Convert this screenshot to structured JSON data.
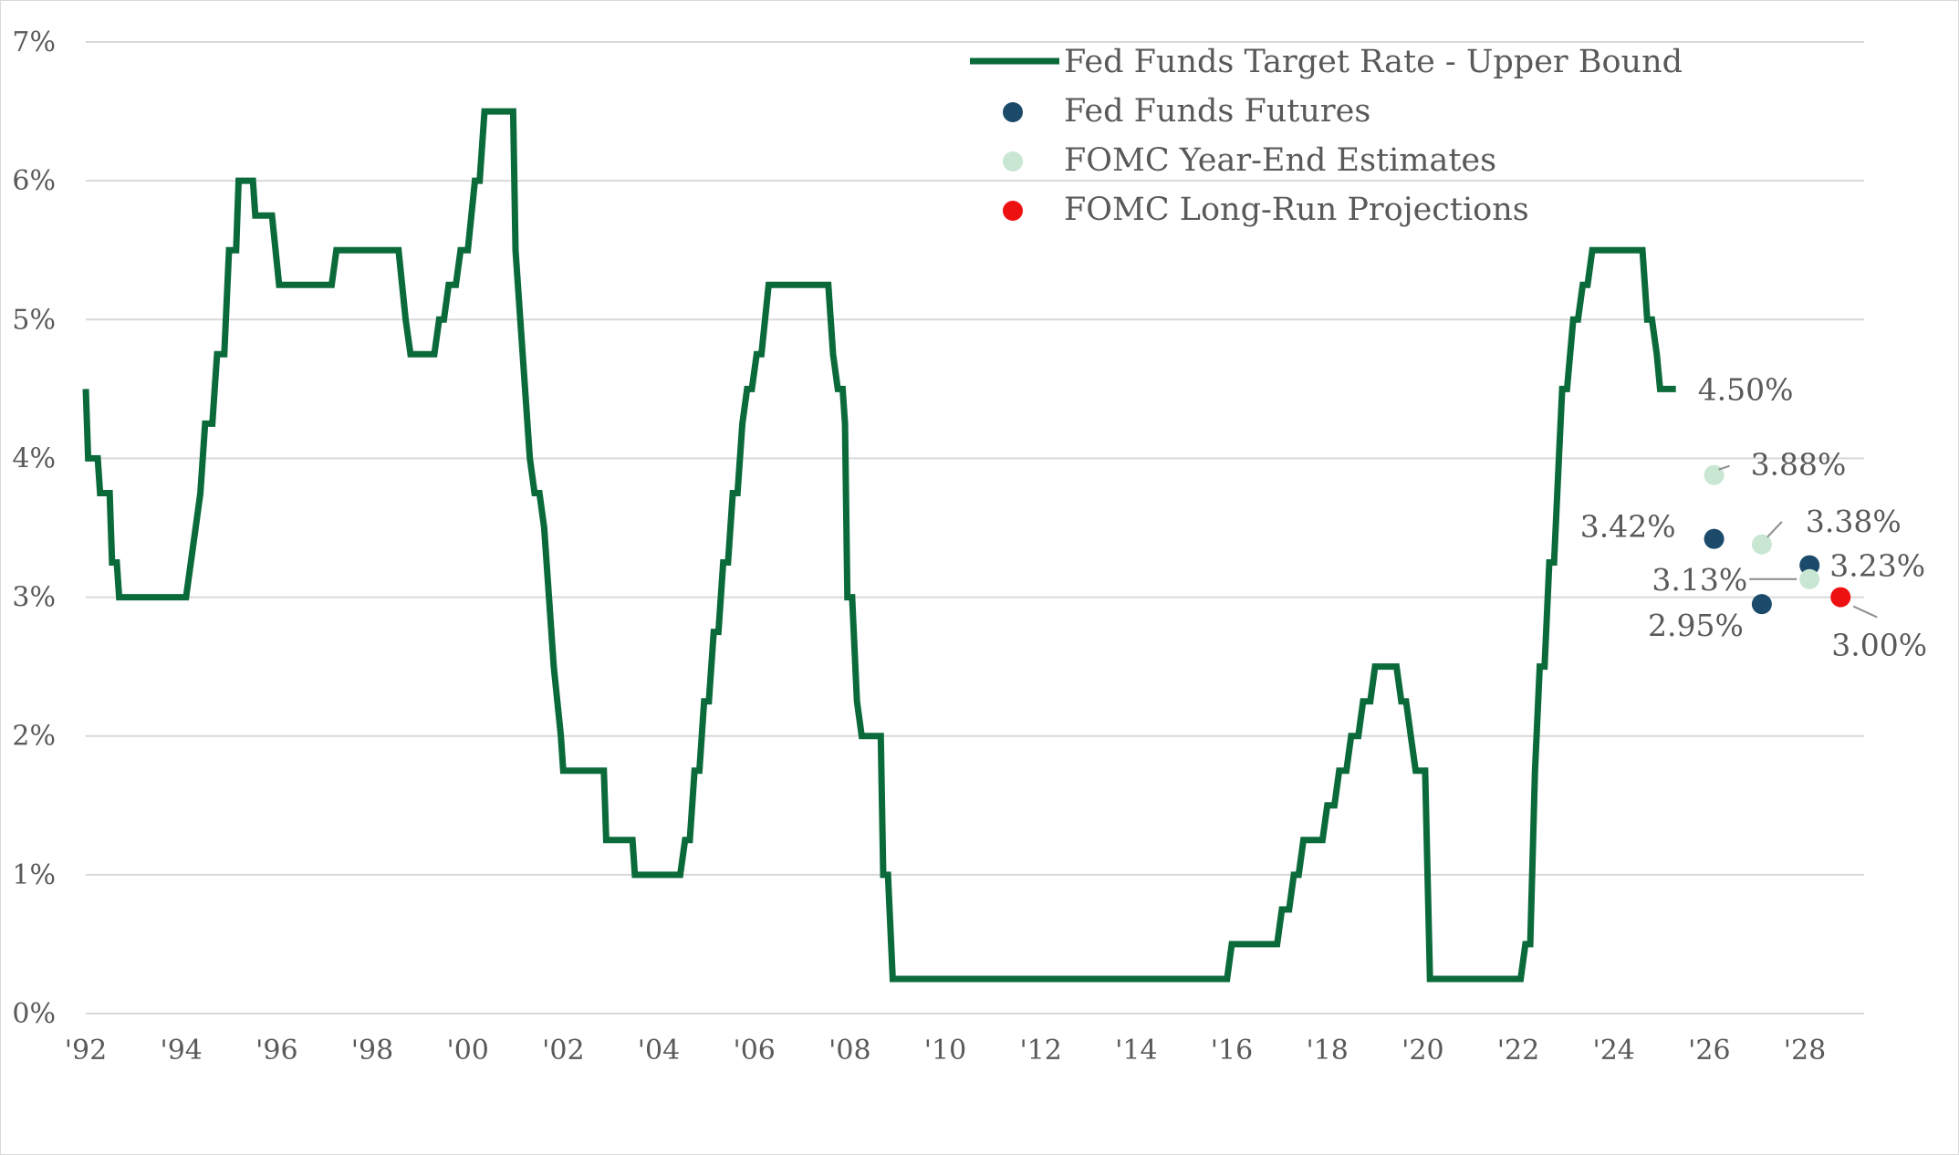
{
  "chart_data": {
    "type": "line",
    "title": "",
    "xlabel": "",
    "ylabel": "",
    "xlim": [
      1992,
      2029
    ],
    "ylim": [
      0,
      7
    ],
    "grid": true,
    "legend_position": "top-right",
    "x_ticks": [
      "'92",
      "'94",
      "'96",
      "'98",
      "'00",
      "'02",
      "'04",
      "'06",
      "'08",
      "'10",
      "'12",
      "'14",
      "'16",
      "'18",
      "'20",
      "'22",
      "'24",
      "'26",
      "'28"
    ],
    "y_ticks": [
      "0%",
      "1%",
      "2%",
      "3%",
      "4%",
      "5%",
      "6%",
      "7%"
    ],
    "colors": {
      "line": "#0b6a3a",
      "futures": "#1b4a6b",
      "year_end": "#c9e6d3",
      "long_run": "#ee1111",
      "grid": "#d9d9d9",
      "text": "#595959"
    },
    "series": [
      {
        "name": "Fed Funds Target Rate - Upper Bound",
        "kind": "step-line",
        "points": [
          [
            1992.0,
            4.5
          ],
          [
            1992.05,
            4.0
          ],
          [
            1992.25,
            4.0
          ],
          [
            1992.3,
            3.75
          ],
          [
            1992.5,
            3.75
          ],
          [
            1992.55,
            3.25
          ],
          [
            1992.65,
            3.25
          ],
          [
            1992.7,
            3.0
          ],
          [
            1994.1,
            3.0
          ],
          [
            1994.3,
            3.5
          ],
          [
            1994.4,
            3.75
          ],
          [
            1994.5,
            4.25
          ],
          [
            1994.65,
            4.25
          ],
          [
            1994.75,
            4.75
          ],
          [
            1994.9,
            4.75
          ],
          [
            1995.0,
            5.5
          ],
          [
            1995.15,
            5.5
          ],
          [
            1995.2,
            6.0
          ],
          [
            1995.5,
            6.0
          ],
          [
            1995.55,
            5.75
          ],
          [
            1995.9,
            5.75
          ],
          [
            1996.05,
            5.25
          ],
          [
            1997.15,
            5.25
          ],
          [
            1997.25,
            5.5
          ],
          [
            1998.55,
            5.5
          ],
          [
            1998.7,
            5.0
          ],
          [
            1998.8,
            4.75
          ],
          [
            1999.3,
            4.75
          ],
          [
            1999.4,
            5.0
          ],
          [
            1999.5,
            5.0
          ],
          [
            1999.6,
            5.25
          ],
          [
            1999.75,
            5.25
          ],
          [
            1999.85,
            5.5
          ],
          [
            2000.0,
            5.5
          ],
          [
            2000.15,
            6.0
          ],
          [
            2000.25,
            6.0
          ],
          [
            2000.35,
            6.5
          ],
          [
            2000.95,
            6.5
          ],
          [
            2001.0,
            5.5
          ],
          [
            2001.1,
            5.0
          ],
          [
            2001.3,
            4.0
          ],
          [
            2001.4,
            3.75
          ],
          [
            2001.5,
            3.75
          ],
          [
            2001.6,
            3.5
          ],
          [
            2001.8,
            2.5
          ],
          [
            2001.95,
            2.0
          ],
          [
            2002.0,
            1.75
          ],
          [
            2002.85,
            1.75
          ],
          [
            2002.9,
            1.25
          ],
          [
            2003.45,
            1.25
          ],
          [
            2003.5,
            1.0
          ],
          [
            2004.45,
            1.0
          ],
          [
            2004.55,
            1.25
          ],
          [
            2004.65,
            1.25
          ],
          [
            2004.75,
            1.75
          ],
          [
            2004.85,
            1.75
          ],
          [
            2004.95,
            2.25
          ],
          [
            2005.05,
            2.25
          ],
          [
            2005.15,
            2.75
          ],
          [
            2005.25,
            2.75
          ],
          [
            2005.35,
            3.25
          ],
          [
            2005.45,
            3.25
          ],
          [
            2005.55,
            3.75
          ],
          [
            2005.65,
            3.75
          ],
          [
            2005.75,
            4.25
          ],
          [
            2005.85,
            4.5
          ],
          [
            2005.95,
            4.5
          ],
          [
            2006.05,
            4.75
          ],
          [
            2006.15,
            4.75
          ],
          [
            2006.3,
            5.25
          ],
          [
            2007.55,
            5.25
          ],
          [
            2007.65,
            4.75
          ],
          [
            2007.75,
            4.5
          ],
          [
            2007.85,
            4.5
          ],
          [
            2007.9,
            4.25
          ],
          [
            2007.95,
            3.0
          ],
          [
            2008.05,
            3.0
          ],
          [
            2008.15,
            2.25
          ],
          [
            2008.25,
            2.0
          ],
          [
            2008.65,
            2.0
          ],
          [
            2008.7,
            1.0
          ],
          [
            2008.8,
            1.0
          ],
          [
            2008.9,
            0.25
          ],
          [
            2015.9,
            0.25
          ],
          [
            2016.0,
            0.5
          ],
          [
            2016.95,
            0.5
          ],
          [
            2017.05,
            0.75
          ],
          [
            2017.2,
            0.75
          ],
          [
            2017.3,
            1.0
          ],
          [
            2017.4,
            1.0
          ],
          [
            2017.5,
            1.25
          ],
          [
            2017.9,
            1.25
          ],
          [
            2018.0,
            1.5
          ],
          [
            2018.15,
            1.5
          ],
          [
            2018.25,
            1.75
          ],
          [
            2018.4,
            1.75
          ],
          [
            2018.5,
            2.0
          ],
          [
            2018.65,
            2.0
          ],
          [
            2018.75,
            2.25
          ],
          [
            2018.9,
            2.25
          ],
          [
            2019.0,
            2.5
          ],
          [
            2019.45,
            2.5
          ],
          [
            2019.55,
            2.25
          ],
          [
            2019.65,
            2.25
          ],
          [
            2019.75,
            2.0
          ],
          [
            2019.85,
            1.75
          ],
          [
            2020.05,
            1.75
          ],
          [
            2020.15,
            0.25
          ],
          [
            2022.05,
            0.25
          ],
          [
            2022.15,
            0.5
          ],
          [
            2022.25,
            0.5
          ],
          [
            2022.35,
            1.75
          ],
          [
            2022.45,
            2.5
          ],
          [
            2022.55,
            2.5
          ],
          [
            2022.65,
            3.25
          ],
          [
            2022.75,
            3.25
          ],
          [
            2022.85,
            4.0
          ],
          [
            2022.92,
            4.5
          ],
          [
            2023.02,
            4.5
          ],
          [
            2023.15,
            5.0
          ],
          [
            2023.25,
            5.0
          ],
          [
            2023.35,
            5.25
          ],
          [
            2023.45,
            5.25
          ],
          [
            2023.55,
            5.5
          ],
          [
            2024.6,
            5.5
          ],
          [
            2024.7,
            5.0
          ],
          [
            2024.8,
            5.0
          ],
          [
            2024.9,
            4.75
          ],
          [
            2024.97,
            4.5
          ],
          [
            2025.3,
            4.5
          ]
        ],
        "end_label": "4.50%"
      },
      {
        "name": "Fed Funds Futures",
        "kind": "scatter",
        "points": [
          {
            "x": 2026.1,
            "y": 3.42,
            "label": "3.42%"
          },
          {
            "x": 2027.1,
            "y": 2.95,
            "label": "2.95%"
          },
          {
            "x": 2028.1,
            "y": 3.23,
            "label": "3.23%"
          }
        ]
      },
      {
        "name": "FOMC Year-End Estimates",
        "kind": "scatter",
        "points": [
          {
            "x": 2026.1,
            "y": 3.88,
            "label": "3.88%"
          },
          {
            "x": 2027.1,
            "y": 3.38,
            "label": "3.38%"
          },
          {
            "x": 2028.1,
            "y": 3.13,
            "label": "3.13%"
          }
        ]
      },
      {
        "name": "FOMC Long-Run Projections",
        "kind": "scatter",
        "points": [
          {
            "x": 2028.75,
            "y": 3.0,
            "label": "3.00%"
          }
        ]
      }
    ]
  }
}
